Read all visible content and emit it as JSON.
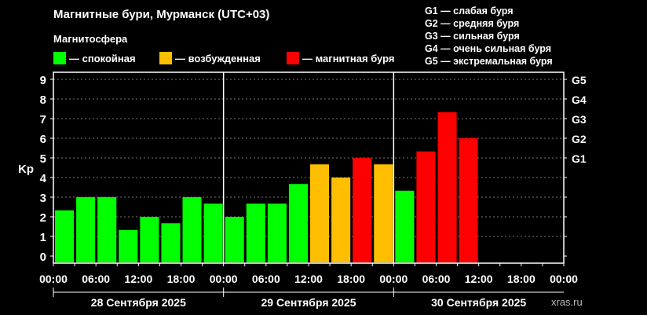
{
  "title": "Магнитные бури, Мурманск (UTC+03)",
  "legend": {
    "heading": "Магнитосфера",
    "items": [
      {
        "label": "— спокойная",
        "color": "#00ff00"
      },
      {
        "label": "— возбужденная",
        "color": "#ffbf00"
      },
      {
        "label": "— магнитная буря",
        "color": "#ff0000"
      }
    ]
  },
  "g_scale": [
    "G1 — слабая буря",
    "G2 — средняя буря",
    "G3 — сильная буря",
    "G4 — очень сильная буря",
    "G5 — экстремальная буря"
  ],
  "source": "xras.ru",
  "chart_data": {
    "type": "bar",
    "ylabel": "Kp",
    "ylim": [
      0,
      9
    ],
    "yticks": [
      "0",
      "1",
      "2",
      "3",
      "4",
      "5",
      "6",
      "7",
      "8",
      "9"
    ],
    "right_ticks": [
      {
        "value": 5,
        "label": "G1"
      },
      {
        "value": 6,
        "label": "G2"
      },
      {
        "value": 7,
        "label": "G3"
      },
      {
        "value": 8,
        "label": "G4"
      },
      {
        "value": 9,
        "label": "G5"
      }
    ],
    "grid": true,
    "xtick_labels": [
      "00:00",
      "06:00",
      "12:00",
      "18:00",
      "00:00",
      "06:00",
      "12:00",
      "18:00",
      "00:00",
      "06:00",
      "12:00",
      "18:00",
      "00:00"
    ],
    "days": [
      "28 Сентября 2025",
      "29 Сентября 2025",
      "30 Сентября 2025"
    ],
    "slots_per_day": 8,
    "values": [
      2.33,
      3,
      3,
      1.33,
      2,
      1.67,
      3,
      2.67,
      2,
      2.67,
      2.67,
      3.67,
      4.67,
      4,
      5,
      4.67,
      3.33,
      5.33,
      7.33,
      6
    ],
    "colors": [
      "#00ff00",
      "#00ff00",
      "#00ff00",
      "#00ff00",
      "#00ff00",
      "#00ff00",
      "#00ff00",
      "#00ff00",
      "#00ff00",
      "#00ff00",
      "#00ff00",
      "#00ff00",
      "#ffbf00",
      "#ffbf00",
      "#ff0000",
      "#ffbf00",
      "#00ff00",
      "#ff0000",
      "#ff0000",
      "#ff0000"
    ]
  }
}
